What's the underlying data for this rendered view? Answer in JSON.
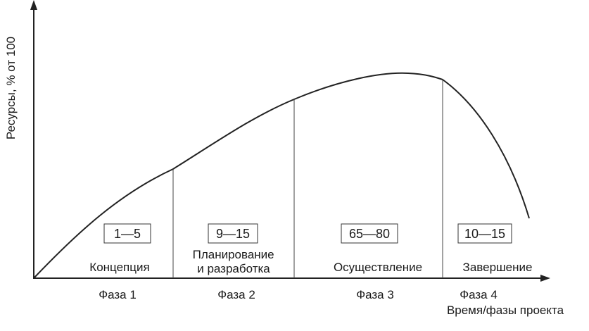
{
  "chart_data": {
    "type": "area",
    "ylabel": "Ресурсы, % от 100",
    "xlabel": "Время/фазы проекта",
    "grid": false,
    "legend": "none",
    "line_color": "#222222",
    "phases": [
      {
        "phase": "Фаза 1",
        "stage": "Концепция",
        "range": "1—5"
      },
      {
        "phase": "Фаза 2",
        "stage": "Планирование\nи разработка",
        "range": "9—15"
      },
      {
        "phase": "Фаза 3",
        "stage": "Осуществление",
        "range": "65—80"
      },
      {
        "phase": "Фаза 4",
        "stage": "Завершение",
        "range": "10—15"
      }
    ]
  }
}
